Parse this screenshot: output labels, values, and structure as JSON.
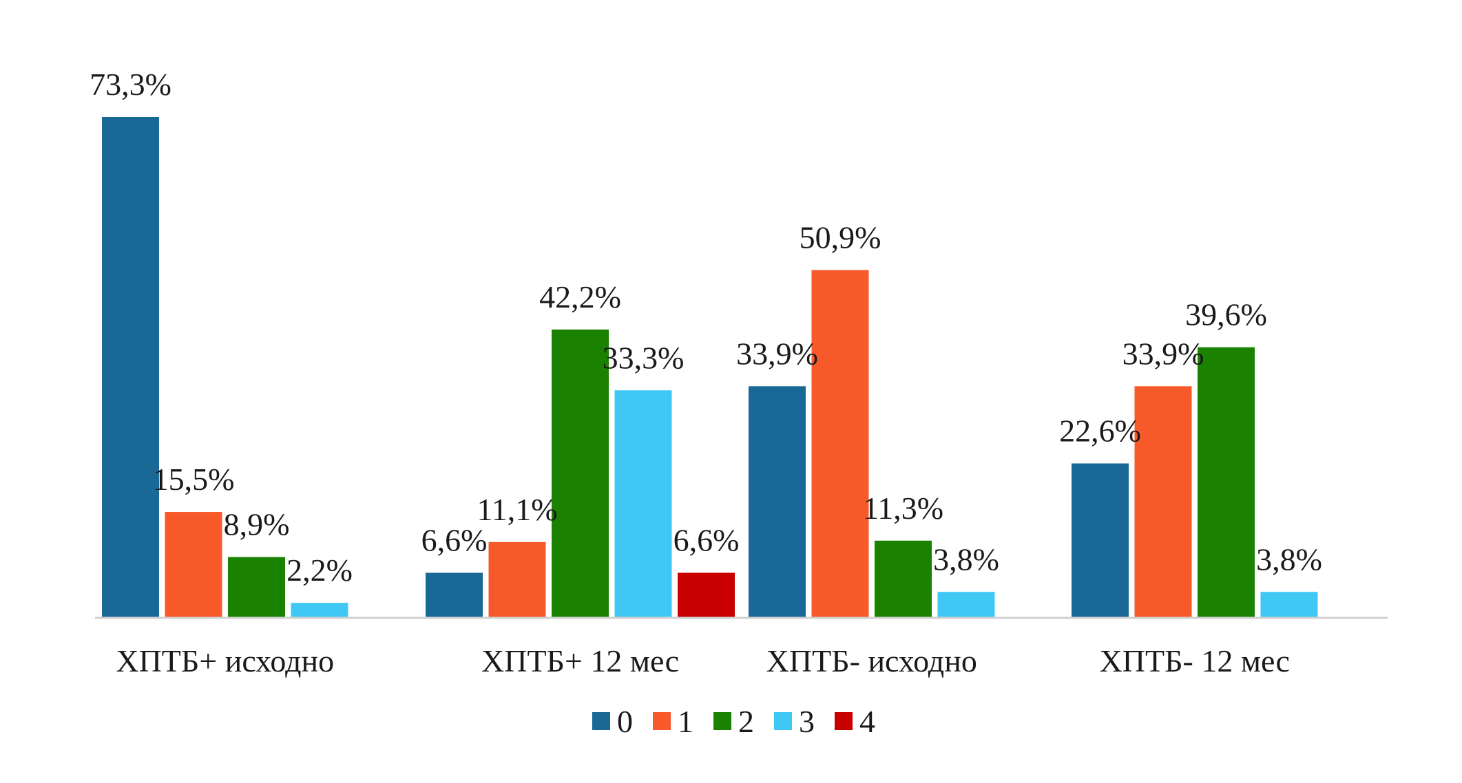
{
  "chart_data": {
    "type": "bar",
    "categories": [
      "ХПТБ+ исходно",
      "ХПТБ+ 12 мес",
      "ХПТБ- исходно",
      "ХПТБ- 12 мес"
    ],
    "series": [
      {
        "name": "0",
        "color": "#1a6896",
        "values": [
          73.3,
          6.6,
          33.9,
          22.6
        ],
        "labels": [
          "73,3%",
          "6,6%",
          "33,9%",
          "22,6%"
        ]
      },
      {
        "name": "1",
        "color": "#f7592b",
        "values": [
          15.5,
          11.1,
          50.9,
          33.9
        ],
        "labels": [
          "15,5%",
          "11,1%",
          "50,9%",
          "33,9%"
        ]
      },
      {
        "name": "2",
        "color": "#1a8200",
        "values": [
          8.9,
          42.2,
          11.3,
          39.6
        ],
        "labels": [
          "8,9%",
          "42,2%",
          "11,3%",
          "39,6%"
        ]
      },
      {
        "name": "3",
        "color": "#40c8f4",
        "values": [
          2.2,
          33.3,
          3.8,
          3.8
        ],
        "labels": [
          "2,2%",
          "33,3%",
          "3,8%",
          "3,8%"
        ]
      },
      {
        "name": "4",
        "color": "#c80000",
        "values": [
          null,
          6.6,
          null,
          null
        ],
        "labels": [
          null,
          "6,6%",
          null,
          null
        ]
      }
    ],
    "ylim": [
      0,
      80
    ],
    "grid": false,
    "legend_position": "bottom"
  }
}
